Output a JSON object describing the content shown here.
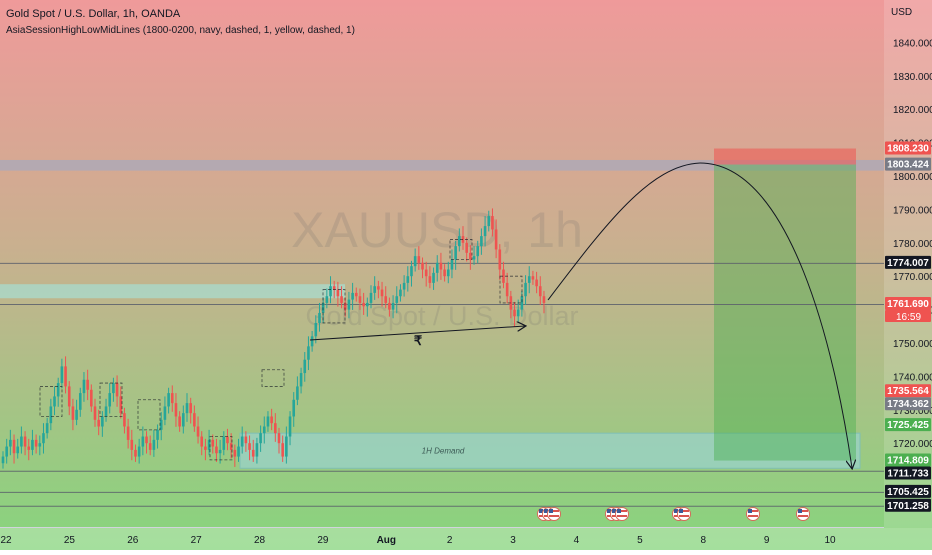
{
  "header": {
    "title": "Gold Spot / U.S. Dollar, 1h, OANDA",
    "indicator": "AsiaSessionHighLowMidLines (1800-0200, navy, dashed, 1, yellow, dashed, 1)"
  },
  "currency": "USD",
  "watermark": {
    "symbol": "XAUUSD, 1h",
    "name": "Gold Spot / U.S. Dollar"
  },
  "colors": {
    "bg_top": "#ef9a9a",
    "bg_bottom": "#86d57d",
    "up": "#26a69a",
    "down": "#ef5350",
    "stop_zone": "#ef5350",
    "target_zone": "#4caf50",
    "demand_zone": "#9ad1c9",
    "resistance_zone": "#b0a8b5"
  },
  "chart_data": {
    "type": "line",
    "x_ticks": [
      "22",
      "25",
      "26",
      "27",
      "28",
      "29",
      "Aug",
      "2",
      "3",
      "4",
      "5",
      "8",
      "9",
      "10"
    ],
    "y_ticks": [
      1720,
      1730,
      1740,
      1750,
      1760,
      1770,
      1780,
      1790,
      1800,
      1810,
      1820,
      1830,
      1840
    ],
    "ylim": [
      1699,
      1850
    ],
    "price_series": [
      1716,
      1719,
      1721,
      1717,
      1719,
      1722,
      1719,
      1718,
      1721,
      1719,
      1720,
      1723,
      1726,
      1731,
      1734,
      1738,
      1743,
      1737,
      1731,
      1727,
      1730,
      1735,
      1739,
      1736,
      1731,
      1727,
      1725,
      1728,
      1731,
      1735,
      1738,
      1734,
      1729,
      1725,
      1721,
      1718,
      1716,
      1719,
      1722,
      1720,
      1718,
      1721,
      1724,
      1727,
      1731,
      1735,
      1732,
      1728,
      1725,
      1729,
      1732,
      1729,
      1725,
      1722,
      1719,
      1718,
      1721,
      1719,
      1717,
      1718,
      1722,
      1720,
      1718,
      1716,
      1719,
      1722,
      1720,
      1718,
      1716,
      1720,
      1723,
      1725,
      1728,
      1726,
      1723,
      1720,
      1716,
      1722,
      1728,
      1733,
      1737,
      1741,
      1745,
      1749,
      1752,
      1756,
      1759,
      1762,
      1764,
      1767,
      1766,
      1764,
      1762,
      1760,
      1763,
      1765,
      1764,
      1762,
      1761,
      1762,
      1765,
      1767,
      1766,
      1764,
      1762,
      1760,
      1762,
      1764,
      1766,
      1768,
      1770,
      1773,
      1776,
      1774,
      1772,
      1770,
      1768,
      1771,
      1774,
      1772,
      1770,
      1772,
      1775,
      1779,
      1782,
      1780,
      1777,
      1775,
      1776,
      1779,
      1782,
      1785,
      1788,
      1784,
      1778,
      1772,
      1768,
      1764,
      1760,
      1758,
      1760,
      1764,
      1768,
      1770,
      1769,
      1767,
      1764,
      1762
    ],
    "price_labels": [
      {
        "value": 1808.23,
        "text": "1808.230",
        "color": "#ef5350"
      },
      {
        "value": 1803.424,
        "text": "1803.424",
        "color": "#787b86"
      },
      {
        "value": 1774.007,
        "text": "1774.007",
        "color": "#131722"
      },
      {
        "value": 1761.69,
        "text": "1761.690",
        "color": "#ef5350"
      },
      {
        "value": 1735.564,
        "text": "1735.564",
        "color": "#ef5350"
      },
      {
        "value": 1734.362,
        "text": "1734.362",
        "color": "#787b86"
      },
      {
        "value": 1725.425,
        "text": "1725.425",
        "color": "#4caf50"
      },
      {
        "value": 1714.809,
        "text": "1714.809",
        "color": "#4caf50"
      },
      {
        "value": 1711.733,
        "text": "1711.733",
        "color": "#131722"
      },
      {
        "value": 1705.425,
        "text": "1705.425",
        "color": "#131722"
      },
      {
        "value": 1701.258,
        "text": "1701.258",
        "color": "#131722"
      }
    ],
    "countdown": "16:59",
    "horizontal_lines": [
      1774.007,
      1761.69,
      1711.733,
      1705.425,
      1701.258
    ],
    "zones": {
      "resistance": {
        "top": 1804.8,
        "bottom": 1801.6
      },
      "demand": {
        "top": 1723.0,
        "bottom": 1712.5,
        "label": "1H Demand"
      },
      "left_box": {
        "top": 1767.6,
        "bottom": 1763.4
      },
      "stop": {
        "top": 1808.23,
        "bottom": 1803.424
      },
      "target": {
        "top": 1803.424,
        "bottom": 1714.809
      }
    },
    "annotation_glyph": "₹"
  }
}
